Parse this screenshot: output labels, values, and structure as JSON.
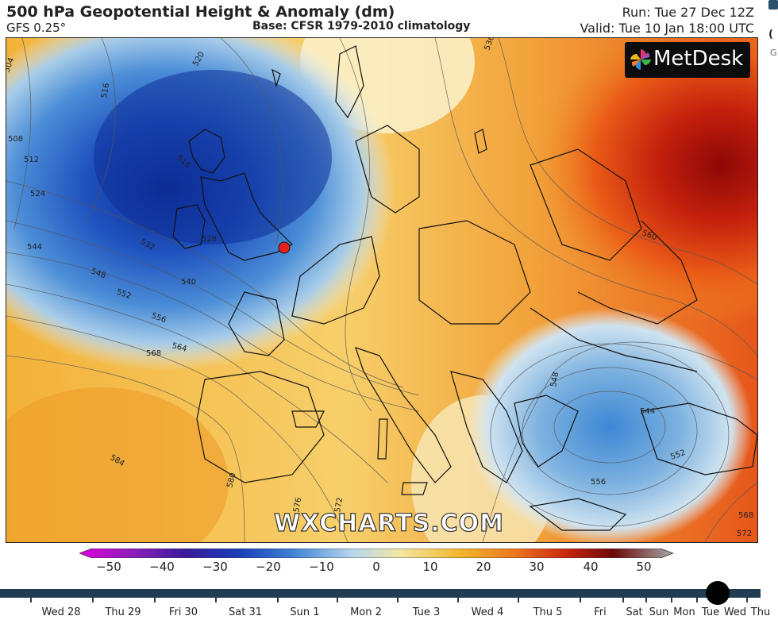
{
  "header": {
    "title": "500 hPa Geopotential Height & Anomaly (dm)",
    "model": "GFS 0.25°",
    "base": "Base: CFSR 1979-2010 climatology",
    "run": "Run: Tue 27 Dec 12Z",
    "valid": "Valid: Tue 10 Jan 18:00 UTC"
  },
  "edge_fragment": {
    "char_a": "(",
    "char_b": "G"
  },
  "map": {
    "logo_text": "MetDesk",
    "watermark": "WXCHARTS.COM",
    "location_marker_color": "#e8201c",
    "contour_labels": [
      "504",
      "508",
      "512",
      "516",
      "516",
      "520",
      "524",
      "528",
      "532",
      "536",
      "540",
      "544",
      "548",
      "552",
      "556",
      "560",
      "564",
      "568",
      "576",
      "580",
      "584",
      "572",
      "548",
      "544",
      "552",
      "556",
      "568",
      "572"
    ]
  },
  "colorbar": {
    "ticks": [
      "−50",
      "−40",
      "−30",
      "−20",
      "−10",
      "0",
      "10",
      "20",
      "30",
      "40",
      "50"
    ],
    "colors": [
      "#e000e0",
      "#8a1fb6",
      "#3a1a9c",
      "#1a3fb8",
      "#3f83d6",
      "#b7d7ee",
      "#f4e6a4",
      "#f2b62f",
      "#ee7a1e",
      "#c9260f",
      "#6a0a0a",
      "#a8a8a8"
    ]
  },
  "timeline": {
    "labels": [
      "Wed 28",
      "Thu 29",
      "Fri 30",
      "Sat 31",
      "Sun 1",
      "Mon 2",
      "Tue 3",
      "Wed 4",
      "Thu 5",
      "Fri",
      "Sat",
      "Sun",
      "Mon",
      "Tue",
      "Wed",
      "Thu"
    ],
    "current": "Tue"
  }
}
